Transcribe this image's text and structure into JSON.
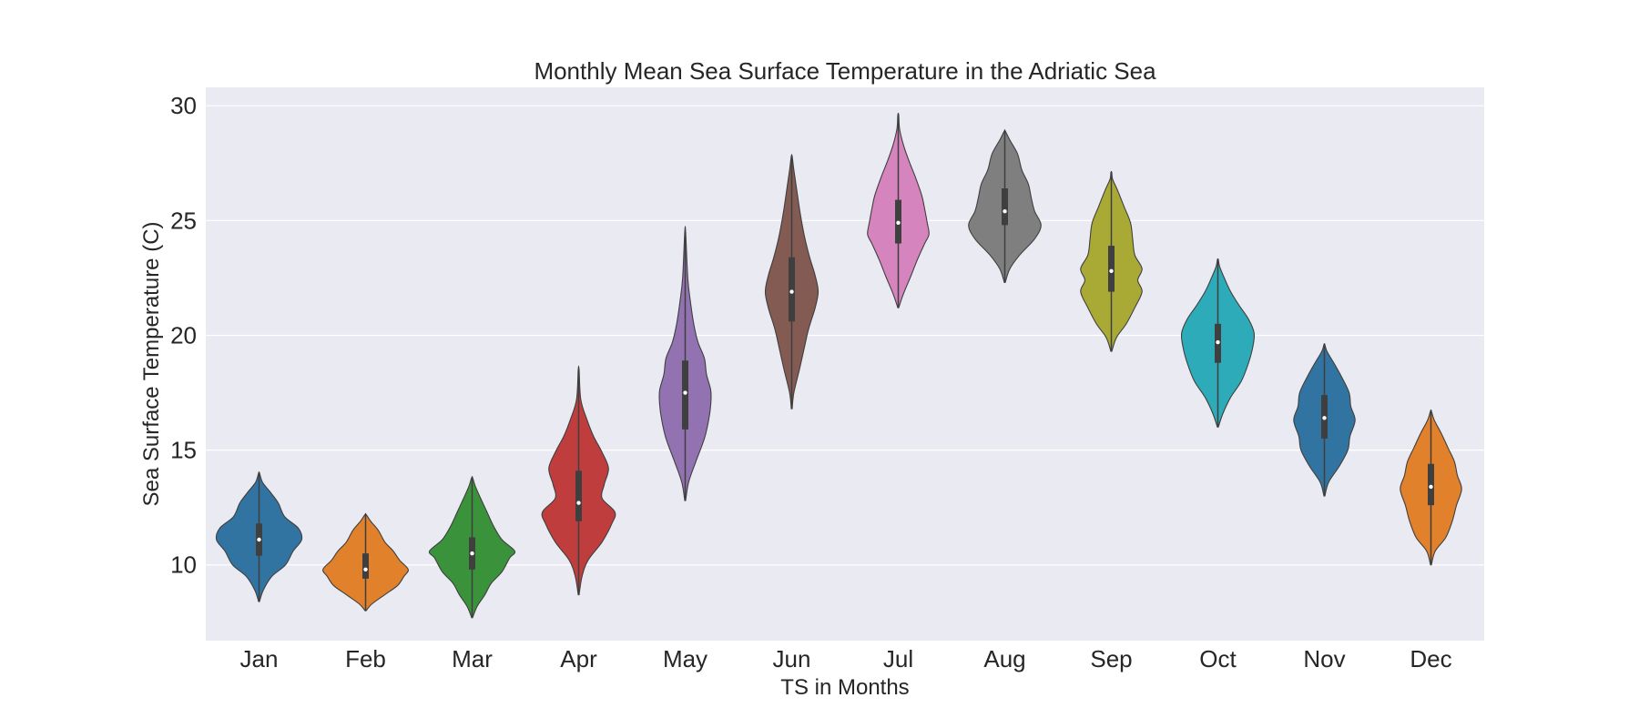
{
  "chart_data": {
    "type": "violin",
    "title": "Monthly Mean Sea Surface Temperature in the Adriatic Sea",
    "xlabel": "TS in Months",
    "ylabel": "Sea Surface Temperature (C)",
    "ylim": [
      6.7,
      30.8
    ],
    "yticks": [
      10,
      15,
      20,
      25,
      30
    ],
    "grid": true,
    "categories": [
      "Jan",
      "Feb",
      "Mar",
      "Apr",
      "May",
      "Jun",
      "Jul",
      "Aug",
      "Sep",
      "Oct",
      "Nov",
      "Dec"
    ],
    "colors": [
      "#3274a1",
      "#e1812c",
      "#3a923a",
      "#c03d3e",
      "#9372b2",
      "#845b53",
      "#d684bd",
      "#7f7f7f",
      "#a9aa35",
      "#2eabb8",
      "#3274a1",
      "#e1812c"
    ],
    "violins": [
      {
        "month": "Jan",
        "min": 8.4,
        "max": 14.0,
        "q1": 10.4,
        "median": 11.1,
        "q3": 11.8,
        "profile": [
          [
            8.4,
            0.01
          ],
          [
            8.9,
            0.1
          ],
          [
            9.5,
            0.3
          ],
          [
            10.0,
            0.62
          ],
          [
            10.6,
            0.8
          ],
          [
            11.1,
            1.0
          ],
          [
            11.6,
            0.92
          ],
          [
            12.1,
            0.6
          ],
          [
            12.7,
            0.45
          ],
          [
            13.2,
            0.25
          ],
          [
            13.6,
            0.08
          ],
          [
            14.0,
            0.01
          ]
        ]
      },
      {
        "month": "Feb",
        "min": 8.0,
        "max": 12.2,
        "q1": 9.4,
        "median": 9.8,
        "q3": 10.5,
        "profile": [
          [
            8.0,
            0.01
          ],
          [
            8.3,
            0.15
          ],
          [
            8.7,
            0.45
          ],
          [
            9.1,
            0.75
          ],
          [
            9.5,
            0.9
          ],
          [
            9.8,
            1.0
          ],
          [
            10.2,
            0.8
          ],
          [
            10.6,
            0.65
          ],
          [
            11.0,
            0.45
          ],
          [
            11.5,
            0.3
          ],
          [
            11.9,
            0.12
          ],
          [
            12.2,
            0.01
          ]
        ]
      },
      {
        "month": "Mar",
        "min": 7.7,
        "max": 13.8,
        "q1": 9.8,
        "median": 10.5,
        "q3": 11.2,
        "profile": [
          [
            7.7,
            0.01
          ],
          [
            8.2,
            0.12
          ],
          [
            8.7,
            0.3
          ],
          [
            9.2,
            0.45
          ],
          [
            9.7,
            0.7
          ],
          [
            10.3,
            0.88
          ],
          [
            10.6,
            1.0
          ],
          [
            11.1,
            0.7
          ],
          [
            11.7,
            0.5
          ],
          [
            12.3,
            0.35
          ],
          [
            12.9,
            0.2
          ],
          [
            13.4,
            0.08
          ],
          [
            13.8,
            0.01
          ]
        ]
      },
      {
        "month": "Apr",
        "min": 8.7,
        "max": 18.5,
        "q1": 11.9,
        "median": 12.7,
        "q3": 14.1,
        "profile": [
          [
            8.7,
            0.01
          ],
          [
            9.5,
            0.08
          ],
          [
            10.2,
            0.22
          ],
          [
            11.0,
            0.55
          ],
          [
            11.8,
            0.78
          ],
          [
            12.3,
            0.85
          ],
          [
            12.9,
            0.55
          ],
          [
            13.5,
            0.6
          ],
          [
            14.2,
            0.7
          ],
          [
            14.9,
            0.55
          ],
          [
            15.6,
            0.35
          ],
          [
            16.3,
            0.2
          ],
          [
            17.2,
            0.05
          ],
          [
            18.5,
            0.01
          ]
        ]
      },
      {
        "month": "May",
        "min": 12.8,
        "max": 24.5,
        "q1": 15.9,
        "median": 17.5,
        "q3": 18.9,
        "profile": [
          [
            12.8,
            0.01
          ],
          [
            13.6,
            0.08
          ],
          [
            14.5,
            0.25
          ],
          [
            15.5,
            0.45
          ],
          [
            16.3,
            0.55
          ],
          [
            17.0,
            0.6
          ],
          [
            17.6,
            0.6
          ],
          [
            18.3,
            0.5
          ],
          [
            19.0,
            0.45
          ],
          [
            19.7,
            0.3
          ],
          [
            20.5,
            0.2
          ],
          [
            21.5,
            0.12
          ],
          [
            22.5,
            0.06
          ],
          [
            24.5,
            0.01
          ]
        ]
      },
      {
        "month": "Jun",
        "min": 16.8,
        "max": 27.8,
        "q1": 20.6,
        "median": 21.9,
        "q3": 23.4,
        "profile": [
          [
            16.8,
            0.01
          ],
          [
            17.5,
            0.05
          ],
          [
            18.5,
            0.18
          ],
          [
            19.5,
            0.3
          ],
          [
            20.3,
            0.4
          ],
          [
            21.2,
            0.55
          ],
          [
            21.9,
            0.62
          ],
          [
            22.6,
            0.55
          ],
          [
            23.4,
            0.42
          ],
          [
            24.3,
            0.3
          ],
          [
            25.3,
            0.2
          ],
          [
            26.3,
            0.12
          ],
          [
            27.2,
            0.05
          ],
          [
            27.8,
            0.01
          ]
        ]
      },
      {
        "month": "Jul",
        "min": 21.2,
        "max": 29.6,
        "q1": 24.0,
        "median": 24.9,
        "q3": 25.9,
        "profile": [
          [
            21.2,
            0.01
          ],
          [
            21.8,
            0.12
          ],
          [
            22.6,
            0.3
          ],
          [
            23.3,
            0.45
          ],
          [
            24.0,
            0.62
          ],
          [
            24.4,
            0.72
          ],
          [
            24.9,
            0.68
          ],
          [
            25.5,
            0.62
          ],
          [
            26.1,
            0.55
          ],
          [
            26.9,
            0.4
          ],
          [
            27.6,
            0.25
          ],
          [
            28.3,
            0.12
          ],
          [
            29.0,
            0.03
          ],
          [
            29.6,
            0.01
          ]
        ]
      },
      {
        "month": "Aug",
        "min": 22.3,
        "max": 28.9,
        "q1": 24.8,
        "median": 25.4,
        "q3": 26.4,
        "profile": [
          [
            22.3,
            0.01
          ],
          [
            22.9,
            0.12
          ],
          [
            23.5,
            0.35
          ],
          [
            24.2,
            0.7
          ],
          [
            24.8,
            0.85
          ],
          [
            25.4,
            0.7
          ],
          [
            26.0,
            0.62
          ],
          [
            26.6,
            0.55
          ],
          [
            27.2,
            0.4
          ],
          [
            27.9,
            0.3
          ],
          [
            28.5,
            0.12
          ],
          [
            28.9,
            0.01
          ]
        ]
      },
      {
        "month": "Sep",
        "min": 19.3,
        "max": 27.1,
        "q1": 21.9,
        "median": 22.8,
        "q3": 23.9,
        "profile": [
          [
            19.3,
            0.01
          ],
          [
            19.9,
            0.12
          ],
          [
            20.5,
            0.35
          ],
          [
            21.2,
            0.55
          ],
          [
            21.9,
            0.72
          ],
          [
            22.4,
            0.62
          ],
          [
            22.9,
            0.72
          ],
          [
            23.5,
            0.55
          ],
          [
            24.2,
            0.5
          ],
          [
            24.9,
            0.45
          ],
          [
            25.6,
            0.3
          ],
          [
            26.3,
            0.15
          ],
          [
            26.8,
            0.03
          ],
          [
            27.1,
            0.01
          ]
        ]
      },
      {
        "month": "Oct",
        "min": 16.0,
        "max": 23.3,
        "q1": 18.8,
        "median": 19.7,
        "q3": 20.5,
        "profile": [
          [
            16.0,
            0.01
          ],
          [
            16.6,
            0.12
          ],
          [
            17.3,
            0.3
          ],
          [
            18.0,
            0.55
          ],
          [
            18.8,
            0.72
          ],
          [
            19.5,
            0.82
          ],
          [
            20.1,
            0.85
          ],
          [
            20.7,
            0.72
          ],
          [
            21.3,
            0.5
          ],
          [
            21.9,
            0.3
          ],
          [
            22.5,
            0.15
          ],
          [
            23.0,
            0.04
          ],
          [
            23.3,
            0.01
          ]
        ]
      },
      {
        "month": "Nov",
        "min": 13.0,
        "max": 19.6,
        "q1": 15.5,
        "median": 16.4,
        "q3": 17.4,
        "profile": [
          [
            13.0,
            0.01
          ],
          [
            13.6,
            0.1
          ],
          [
            14.3,
            0.35
          ],
          [
            15.0,
            0.55
          ],
          [
            15.6,
            0.6
          ],
          [
            16.3,
            0.72
          ],
          [
            16.9,
            0.62
          ],
          [
            17.5,
            0.58
          ],
          [
            18.2,
            0.4
          ],
          [
            18.8,
            0.22
          ],
          [
            19.3,
            0.06
          ],
          [
            19.6,
            0.01
          ]
        ]
      },
      {
        "month": "Dec",
        "min": 10.0,
        "max": 16.7,
        "q1": 12.6,
        "median": 13.4,
        "q3": 14.4,
        "profile": [
          [
            10.0,
            0.01
          ],
          [
            10.6,
            0.1
          ],
          [
            11.2,
            0.35
          ],
          [
            11.9,
            0.5
          ],
          [
            12.6,
            0.6
          ],
          [
            13.3,
            0.72
          ],
          [
            13.9,
            0.62
          ],
          [
            14.5,
            0.55
          ],
          [
            15.1,
            0.4
          ],
          [
            15.7,
            0.25
          ],
          [
            16.3,
            0.08
          ],
          [
            16.7,
            0.01
          ]
        ]
      }
    ]
  }
}
